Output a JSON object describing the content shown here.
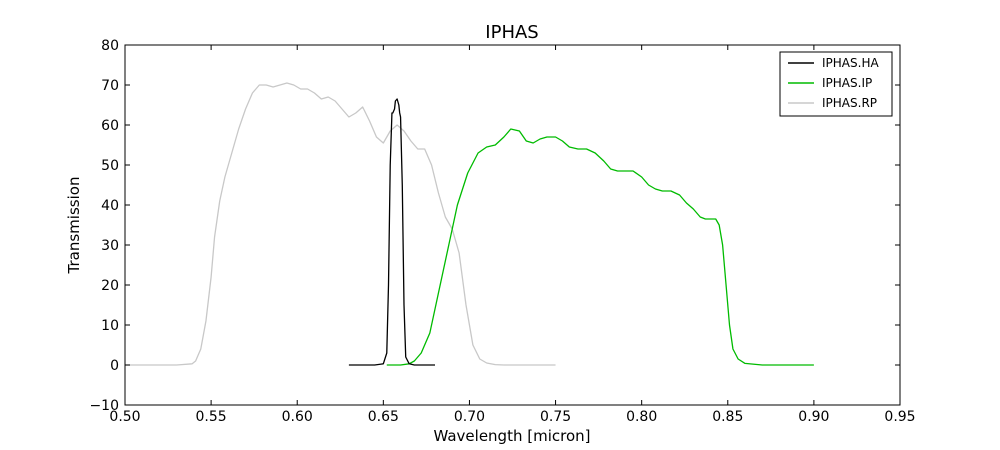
{
  "chart_data": {
    "type": "line",
    "title": "IPHAS",
    "xlabel": "Wavelength [micron]",
    "ylabel": "Transmission",
    "xlim": [
      0.5,
      0.95
    ],
    "ylim": [
      -10,
      80
    ],
    "xticks": [
      0.5,
      0.55,
      0.6,
      0.65,
      0.7,
      0.75,
      0.8,
      0.85,
      0.9,
      0.95
    ],
    "xtick_labels": [
      "0.50",
      "0.55",
      "0.60",
      "0.65",
      "0.70",
      "0.75",
      "0.80",
      "0.85",
      "0.90",
      "0.95"
    ],
    "yticks": [
      -10,
      0,
      10,
      20,
      30,
      40,
      50,
      60,
      70,
      80
    ],
    "ytick_labels": [
      "−10",
      "0",
      "10",
      "20",
      "30",
      "40",
      "50",
      "60",
      "70",
      "80"
    ],
    "grid": false,
    "legend_position": "top-right",
    "series": [
      {
        "name": "IPHAS.HA",
        "color": "#000000",
        "x": [
          0.63,
          0.645,
          0.65,
          0.652,
          0.653,
          0.654,
          0.655,
          0.6555,
          0.6565,
          0.657,
          0.658,
          0.659,
          0.6595,
          0.66,
          0.661,
          0.662,
          0.663,
          0.665,
          0.668,
          0.68
        ],
        "y": [
          0,
          0,
          0.3,
          3,
          20,
          50,
          63,
          63,
          64,
          66,
          66.5,
          65,
          63,
          62,
          45,
          15,
          2,
          0.3,
          0,
          0
        ]
      },
      {
        "name": "IPHAS.IP",
        "color": "#00bb00",
        "x": [
          0.652,
          0.66,
          0.665,
          0.668,
          0.672,
          0.677,
          0.682,
          0.688,
          0.693,
          0.699,
          0.705,
          0.71,
          0.715,
          0.72,
          0.724,
          0.729,
          0.733,
          0.737,
          0.741,
          0.745,
          0.75,
          0.754,
          0.758,
          0.763,
          0.768,
          0.773,
          0.778,
          0.782,
          0.786,
          0.79,
          0.795,
          0.8,
          0.804,
          0.808,
          0.812,
          0.817,
          0.822,
          0.826,
          0.83,
          0.834,
          0.837,
          0.84,
          0.843,
          0.845,
          0.847,
          0.849,
          0.851,
          0.853,
          0.856,
          0.86,
          0.87,
          0.9
        ],
        "y": [
          0,
          0,
          0.3,
          1,
          3,
          8,
          18,
          30,
          40,
          48,
          53,
          54.5,
          55,
          57,
          59,
          58.5,
          56,
          55.5,
          56.5,
          57,
          57,
          56,
          54.5,
          54,
          54,
          53,
          51,
          49,
          48.5,
          48.5,
          48.5,
          47,
          45,
          44,
          43.5,
          43.5,
          42.5,
          40.5,
          39,
          37,
          36.5,
          36.5,
          36.5,
          35,
          30,
          20,
          10,
          4,
          1.5,
          0.4,
          0,
          0
        ]
      },
      {
        "name": "IPHAS.RP",
        "color": "#c8c8c8",
        "x": [
          0.5,
          0.53,
          0.539,
          0.541,
          0.544,
          0.547,
          0.55,
          0.552,
          0.555,
          0.558,
          0.562,
          0.566,
          0.57,
          0.574,
          0.578,
          0.582,
          0.586,
          0.59,
          0.594,
          0.598,
          0.602,
          0.606,
          0.61,
          0.614,
          0.618,
          0.622,
          0.626,
          0.63,
          0.634,
          0.638,
          0.642,
          0.646,
          0.65,
          0.654,
          0.658,
          0.662,
          0.666,
          0.67,
          0.674,
          0.678,
          0.682,
          0.686,
          0.69,
          0.694,
          0.698,
          0.702,
          0.706,
          0.71,
          0.715,
          0.72,
          0.75
        ],
        "y": [
          0,
          0,
          0.3,
          1,
          4,
          11,
          22,
          32,
          41,
          47,
          53,
          59,
          64,
          68,
          70,
          70,
          69.5,
          70,
          70.5,
          70,
          69,
          69,
          68,
          66.5,
          67,
          66,
          64,
          62,
          63,
          64.5,
          61,
          57,
          55.5,
          58.5,
          60,
          58.5,
          56,
          54,
          54,
          50,
          43,
          37,
          34,
          28,
          15,
          5,
          1.5,
          0.5,
          0.1,
          0,
          0
        ]
      }
    ]
  }
}
